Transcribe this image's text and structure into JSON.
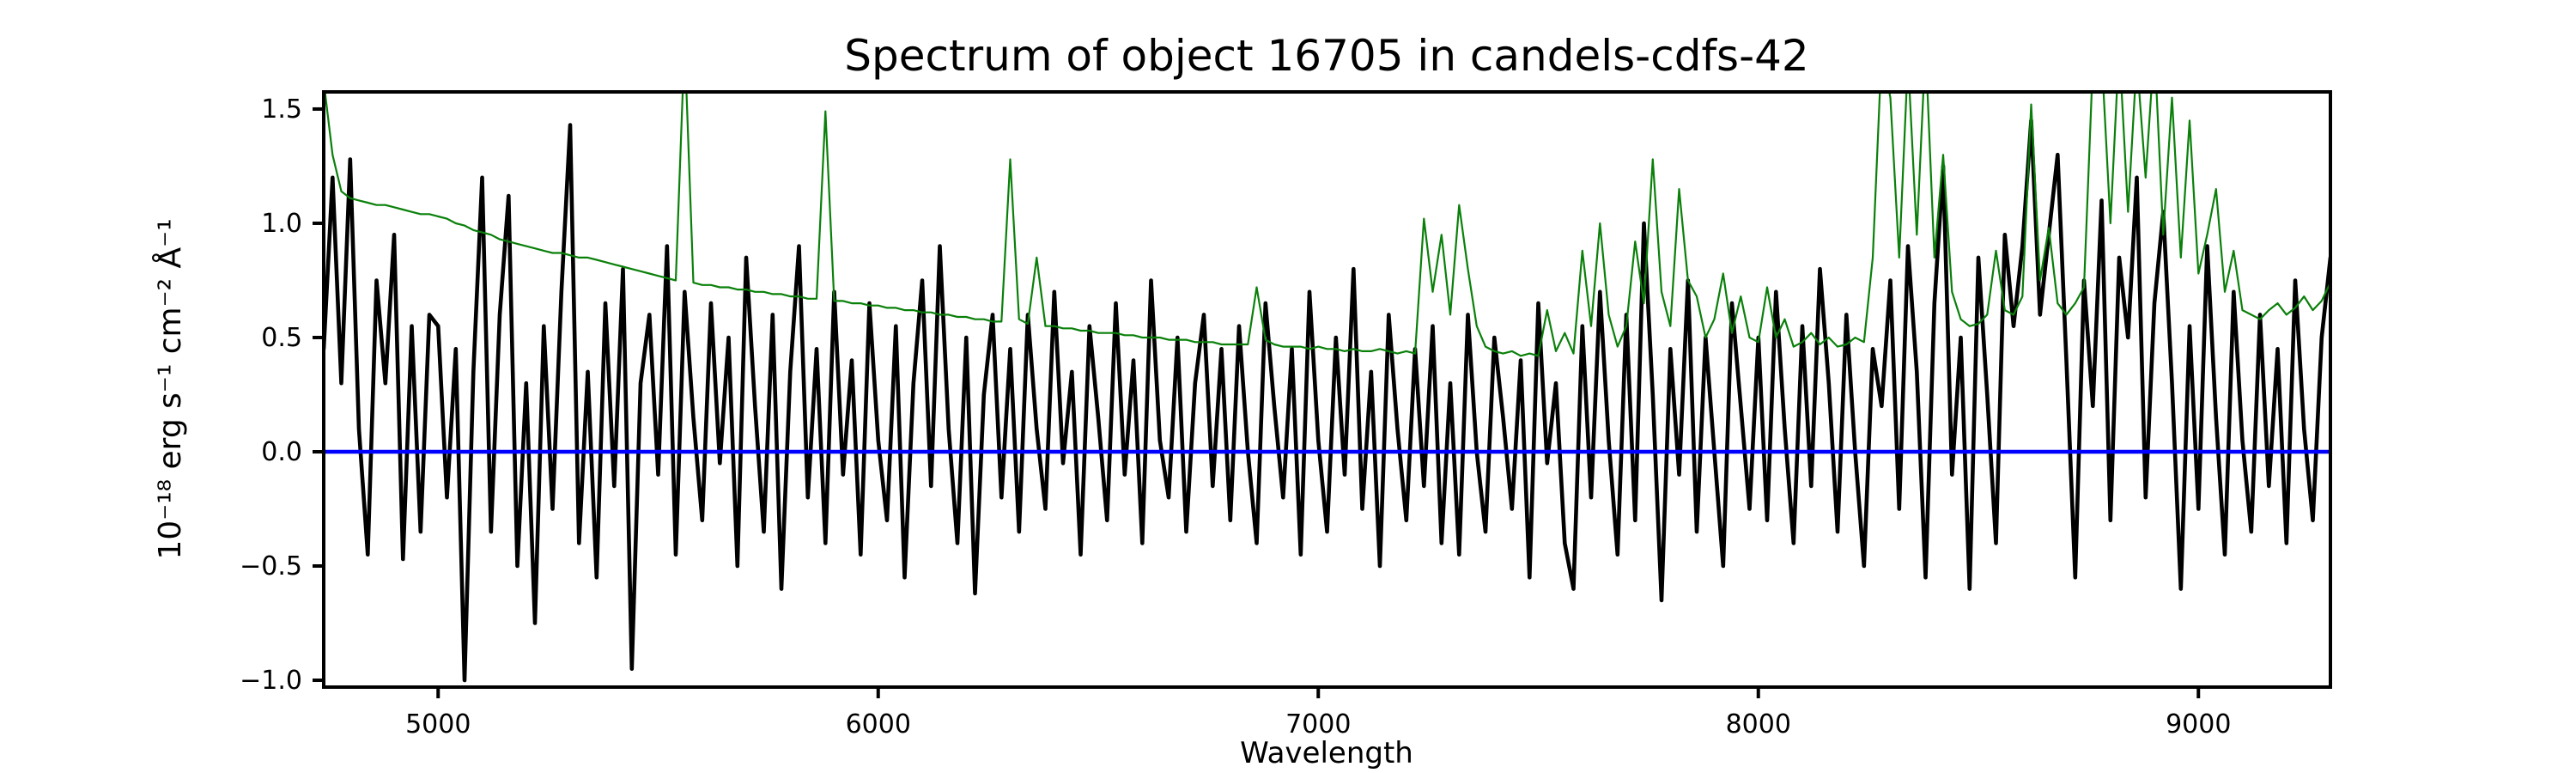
{
  "figure": {
    "background": "#ffffff",
    "frame_color": "#000000"
  },
  "chart_data": {
    "type": "line",
    "title": "Spectrum of object 16705 in candels-cdfs-42",
    "xlabel": "Wavelength",
    "ylabel": "10⁻¹⁸ erg s⁻¹ cm⁻² Å⁻¹",
    "xlim": [
      4740,
      9300
    ],
    "ylim": [
      -1.03,
      1.575
    ],
    "xticks": [
      5000,
      6000,
      7000,
      8000,
      9000
    ],
    "xtick_labels": [
      "5000",
      "6000",
      "7000",
      "8000",
      "9000"
    ],
    "yticks": [
      1.5,
      1.0,
      0.5,
      0.0,
      -0.5,
      -1.0
    ],
    "ytick_labels": [
      "1.5",
      "1.0",
      "0.5",
      "0.0",
      "−0.5",
      "−1.0"
    ],
    "grid": false,
    "legend": null,
    "lambda_start": 4740,
    "lambda_step": 20,
    "series": [
      {
        "name": "object-flux",
        "color": "#000000",
        "linewidth": 4.6,
        "values": [
          0.45,
          1.2,
          0.3,
          1.28,
          0.1,
          -0.45,
          0.75,
          0.3,
          0.95,
          -0.47,
          0.55,
          -0.35,
          0.6,
          0.55,
          -0.2,
          0.45,
          -1.0,
          0.35,
          1.2,
          -0.35,
          0.6,
          1.12,
          -0.5,
          0.3,
          -0.75,
          0.55,
          -0.25,
          0.7,
          1.43,
          -0.4,
          0.35,
          -0.55,
          0.65,
          -0.15,
          0.8,
          -0.95,
          0.3,
          0.6,
          -0.1,
          0.9,
          -0.45,
          0.7,
          0.15,
          -0.3,
          0.65,
          -0.05,
          0.5,
          -0.5,
          0.85,
          0.2,
          -0.35,
          0.6,
          -0.6,
          0.35,
          0.9,
          -0.2,
          0.45,
          -0.4,
          0.7,
          -0.1,
          0.4,
          -0.45,
          0.65,
          0.05,
          -0.3,
          0.55,
          -0.55,
          0.3,
          0.75,
          -0.15,
          0.9,
          0.1,
          -0.4,
          0.5,
          -0.62,
          0.25,
          0.6,
          -0.2,
          0.45,
          -0.35,
          0.6,
          0.1,
          -0.25,
          0.7,
          -0.05,
          0.35,
          -0.45,
          0.55,
          0.15,
          -0.3,
          0.65,
          -0.1,
          0.4,
          -0.4,
          0.75,
          0.05,
          -0.2,
          0.5,
          -0.35,
          0.3,
          0.6,
          -0.15,
          0.45,
          -0.3,
          0.55,
          0.0,
          -0.4,
          0.65,
          0.2,
          -0.2,
          0.45,
          -0.45,
          0.7,
          0.05,
          -0.35,
          0.5,
          -0.1,
          0.8,
          -0.25,
          0.35,
          -0.5,
          0.6,
          0.1,
          -0.3,
          0.45,
          -0.15,
          0.55,
          -0.4,
          0.3,
          -0.45,
          0.6,
          0.0,
          -0.35,
          0.5,
          0.15,
          -0.25,
          0.4,
          -0.55,
          0.65,
          -0.05,
          0.3,
          -0.4,
          -0.6,
          0.55,
          -0.2,
          0.7,
          0.05,
          -0.45,
          0.6,
          -0.3,
          1.0,
          0.25,
          -0.65,
          0.45,
          -0.1,
          0.75,
          -0.35,
          0.5,
          0.0,
          -0.5,
          0.65,
          0.2,
          -0.25,
          0.5,
          -0.3,
          0.7,
          0.1,
          -0.4,
          0.55,
          -0.15,
          0.8,
          0.3,
          -0.35,
          0.6,
          0.0,
          -0.5,
          0.45,
          0.2,
          0.75,
          -0.25,
          0.9,
          0.35,
          -0.55,
          0.65,
          1.25,
          -0.1,
          0.5,
          -0.6,
          0.85,
          0.25,
          -0.4,
          0.95,
          0.55,
          0.9,
          1.45,
          0.6,
          0.95,
          1.3,
          0.4,
          -0.55,
          0.75,
          0.2,
          1.1,
          -0.3,
          0.85,
          0.5,
          1.2,
          -0.2,
          0.65,
          1.05,
          0.3,
          -0.6,
          0.55,
          -0.25,
          0.9,
          0.15,
          -0.45,
          0.7,
          0.05,
          -0.35,
          0.6,
          -0.15,
          0.45,
          -0.4,
          0.75,
          0.1,
          -0.3,
          0.5,
          0.85
        ]
      },
      {
        "name": "noise-sky-spectrum",
        "color": "#0a800a",
        "linewidth": 2.2,
        "values": [
          1.62,
          1.3,
          1.14,
          1.11,
          1.1,
          1.09,
          1.08,
          1.08,
          1.07,
          1.06,
          1.05,
          1.04,
          1.04,
          1.03,
          1.02,
          1.0,
          0.99,
          0.97,
          0.96,
          0.95,
          0.93,
          0.92,
          0.91,
          0.9,
          0.89,
          0.88,
          0.87,
          0.87,
          0.86,
          0.85,
          0.85,
          0.84,
          0.83,
          0.82,
          0.81,
          0.8,
          0.79,
          0.78,
          0.77,
          0.76,
          0.75,
          1.8,
          0.74,
          0.73,
          0.73,
          0.72,
          0.72,
          0.71,
          0.71,
          0.7,
          0.7,
          0.69,
          0.69,
          0.68,
          0.68,
          0.67,
          0.67,
          1.49,
          0.66,
          0.66,
          0.65,
          0.65,
          0.64,
          0.64,
          0.63,
          0.63,
          0.62,
          0.62,
          0.61,
          0.61,
          0.6,
          0.6,
          0.59,
          0.59,
          0.58,
          0.58,
          0.57,
          0.57,
          1.28,
          0.58,
          0.56,
          0.85,
          0.55,
          0.55,
          0.54,
          0.54,
          0.53,
          0.53,
          0.52,
          0.52,
          0.52,
          0.51,
          0.51,
          0.5,
          0.5,
          0.5,
          0.49,
          0.49,
          0.49,
          0.48,
          0.48,
          0.48,
          0.47,
          0.47,
          0.47,
          0.47,
          0.72,
          0.49,
          0.47,
          0.46,
          0.46,
          0.46,
          0.45,
          0.46,
          0.45,
          0.45,
          0.44,
          0.45,
          0.44,
          0.44,
          0.45,
          0.44,
          0.43,
          0.44,
          0.43,
          1.02,
          0.7,
          0.95,
          0.6,
          1.08,
          0.8,
          0.55,
          0.46,
          0.44,
          0.43,
          0.44,
          0.42,
          0.43,
          0.42,
          0.62,
          0.44,
          0.52,
          0.43,
          0.88,
          0.55,
          1.0,
          0.6,
          0.46,
          0.55,
          0.92,
          0.65,
          1.28,
          0.7,
          0.55,
          1.15,
          0.75,
          0.68,
          0.5,
          0.58,
          0.78,
          0.52,
          0.68,
          0.5,
          0.48,
          0.72,
          0.5,
          0.58,
          0.46,
          0.48,
          0.52,
          0.47,
          0.5,
          0.46,
          0.47,
          0.5,
          0.48,
          0.85,
          1.75,
          1.55,
          0.85,
          1.72,
          0.95,
          1.78,
          0.85,
          1.3,
          0.7,
          0.58,
          0.55,
          0.56,
          0.6,
          0.88,
          0.62,
          0.6,
          0.68,
          1.52,
          0.75,
          0.98,
          0.65,
          0.6,
          0.65,
          0.72,
          1.7,
          1.74,
          1.0,
          1.78,
          1.05,
          1.72,
          1.2,
          1.78,
          0.95,
          1.55,
          0.85,
          1.45,
          0.78,
          0.95,
          1.15,
          0.7,
          0.88,
          0.62,
          0.6,
          0.58,
          0.62,
          0.65,
          0.6,
          0.63,
          0.68,
          0.62,
          0.66,
          0.74
        ]
      }
    ],
    "reference_lines": [
      {
        "name": "zero-flux-line",
        "orientation": "horizontal",
        "y": 0.0,
        "color": "#0000ff",
        "linewidth": 4.6
      }
    ]
  }
}
